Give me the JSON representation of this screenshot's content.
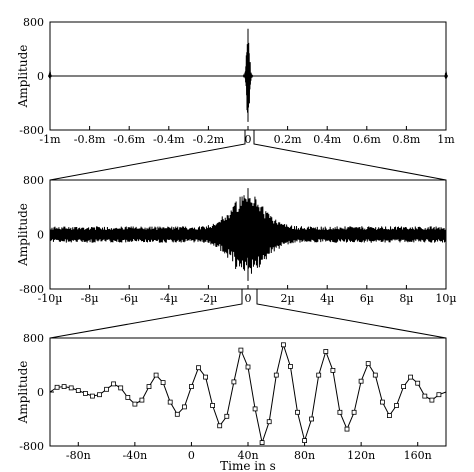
{
  "chart_data": [
    {
      "type": "line",
      "description_id": "overview",
      "ylabel": "Amplitude",
      "xlabel": "",
      "xlim": [
        -1,
        1
      ],
      "x_unit": "ms",
      "ylim": [
        -800,
        800
      ],
      "yticks": [
        800,
        0,
        -800
      ],
      "ytick_labels": [
        "800",
        "0",
        "-800"
      ],
      "xticks": [
        -1,
        -0.8,
        -0.6,
        -0.4,
        -0.2,
        0,
        0.2,
        0.4,
        0.6,
        0.8,
        1
      ],
      "xtick_labels": [
        "-1m",
        "-0.8m",
        "-0.6m",
        "-0.4m",
        "-0.2m",
        "0",
        "0.2m",
        "0.4m",
        "0.6m",
        "0.8m",
        "1m"
      ],
      "grid": false,
      "legend": "none",
      "features": [
        {
          "x": -1.0,
          "peak": 90
        },
        {
          "x": 0.0,
          "peak": 700,
          "trough": -680
        },
        {
          "x": 1.0,
          "peak": 90
        }
      ]
    },
    {
      "type": "line",
      "description_id": "zoom-1",
      "ylabel": "Amplitude",
      "xlabel": "",
      "xlim": [
        -10,
        10
      ],
      "x_unit": "µs",
      "ylim": [
        -800,
        800
      ],
      "yticks": [
        800,
        0,
        -800
      ],
      "ytick_labels": [
        "800",
        "0",
        "-800"
      ],
      "xticks": [
        -10,
        -8,
        -6,
        -4,
        -2,
        0,
        2,
        4,
        6,
        8,
        10
      ],
      "xtick_labels": [
        "-10µ",
        "-8µ",
        "-6µ",
        "-4µ",
        "-2µ",
        "0",
        "2µ",
        "4µ",
        "6µ",
        "8µ",
        "10µ"
      ],
      "grid": false,
      "legend": "none",
      "features": [
        {
          "x": 0.0,
          "peak": 680,
          "trough": -680
        },
        {
          "x_range": [
            -10,
            10
          ],
          "noise_amplitude": 120
        }
      ]
    },
    {
      "type": "line",
      "description_id": "zoom-2",
      "ylabel": "Amplitude",
      "xlabel": "Time in s",
      "xlim": [
        -100,
        180
      ],
      "x_unit": "ns",
      "ylim": [
        -800,
        800
      ],
      "yticks": [
        800,
        0,
        -800
      ],
      "ytick_labels": [
        "800",
        "0",
        "-800"
      ],
      "xticks": [
        -80,
        -40,
        0,
        40,
        80,
        120,
        160
      ],
      "xtick_labels": [
        "-80n",
        "-40n",
        "0",
        "40n",
        "80n",
        "120n",
        "160n"
      ],
      "grid": false,
      "legend": "none",
      "markers": "open-square",
      "x": [
        -100,
        -95,
        -90,
        -85,
        -80,
        -75,
        -70,
        -65,
        -60,
        -55,
        -50,
        -45,
        -40,
        -35,
        -30,
        -25,
        -20,
        -15,
        -10,
        -5,
        0,
        5,
        10,
        15,
        20,
        25,
        30,
        35,
        40,
        45,
        50,
        55,
        60,
        65,
        70,
        75,
        80,
        85,
        90,
        95,
        100,
        105,
        110,
        115,
        120,
        125,
        130,
        135,
        140,
        145,
        150,
        155,
        160,
        165,
        170,
        175,
        180
      ],
      "y": [
        0,
        70,
        80,
        60,
        20,
        -20,
        -60,
        -40,
        40,
        120,
        60,
        -80,
        -180,
        -120,
        80,
        250,
        140,
        -150,
        -330,
        -220,
        80,
        360,
        220,
        -200,
        -500,
        -360,
        150,
        620,
        370,
        -250,
        -750,
        -440,
        250,
        700,
        380,
        -300,
        -720,
        -400,
        250,
        600,
        320,
        -300,
        -550,
        -300,
        160,
        420,
        250,
        -150,
        -350,
        -200,
        80,
        220,
        130,
        -60,
        -120,
        -40,
        0
      ]
    }
  ]
}
